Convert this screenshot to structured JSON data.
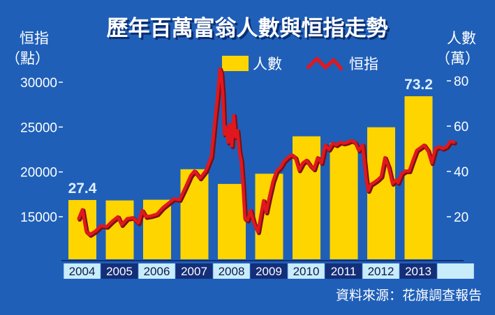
{
  "chart_data": {
    "type": "bar",
    "title": "歷年百萬富翁人數與恒指走勢",
    "left_axis_label": [
      "恒指",
      "（點）"
    ],
    "right_axis_label": [
      "人數",
      "（萬）"
    ],
    "left_ylim": [
      10000,
      35000
    ],
    "left_ticks": [
      "15000",
      "20000",
      "25000",
      "30000"
    ],
    "left_tick_values": [
      15000,
      20000,
      25000,
      30000
    ],
    "right_ylim": [
      0,
      80
    ],
    "right_ticks": [
      "20",
      "40",
      "60",
      "80"
    ],
    "right_tick_values": [
      20,
      40,
      60,
      80
    ],
    "categories": [
      "2004",
      "2005",
      "2006",
      "2007",
      "2008",
      "2009",
      "2010",
      "2011",
      "2012",
      "2013"
    ],
    "series": [
      {
        "name": "人數",
        "color": "#ffd500",
        "axis": "right",
        "values": [
          27.4,
          27.2,
          27.5,
          41,
          34.5,
          39,
          55.5,
          52.5,
          59.5,
          73.2
        ]
      },
      {
        "name": "恒指",
        "color": "#e0181e",
        "axis": "left",
        "x": [
          2003.9,
          2004.0,
          2004.1,
          2004.2,
          2004.35,
          2004.5,
          2004.65,
          2004.8,
          2004.95,
          2005.05,
          2005.2,
          2005.35,
          2005.5,
          2005.6,
          2005.7,
          2005.85,
          2006.0,
          2006.15,
          2006.3,
          2006.45,
          2006.6,
          2006.75,
          2006.9,
          2007.0,
          2007.15,
          2007.3,
          2007.45,
          2007.55,
          2007.62,
          2007.68,
          2007.72,
          2007.76,
          2007.8,
          2007.85,
          2007.9,
          2007.95,
          2008.0,
          2008.05,
          2008.1,
          2008.15,
          2008.2,
          2008.25,
          2008.3,
          2008.35,
          2008.42,
          2008.5,
          2008.6,
          2008.7,
          2008.78,
          2008.85,
          2008.92,
          2009.0,
          2009.1,
          2009.2,
          2009.3,
          2009.4,
          2009.5,
          2009.6,
          2009.7,
          2009.8,
          2009.9,
          2010.0,
          2010.1,
          2010.2,
          2010.3,
          2010.4,
          2010.5,
          2010.6,
          2010.7,
          2010.8,
          2010.9,
          2011.0,
          2011.1,
          2011.2,
          2011.3,
          2011.4,
          2011.5,
          2011.6,
          2011.65,
          2011.72,
          2011.8,
          2011.9,
          2012.0,
          2012.1,
          2012.2,
          2012.3,
          2012.4,
          2012.45,
          2012.55,
          2012.65,
          2012.75,
          2012.85,
          2012.95,
          2013.05,
          2013.15,
          2013.25,
          2013.35,
          2013.45,
          2013.55,
          2013.65,
          2013.75,
          2013.85,
          2013.95
        ],
        "values": [
          14800,
          15800,
          13400,
          13000,
          13400,
          14000,
          13900,
          14500,
          15000,
          14100,
          14800,
          14900,
          14300,
          15700,
          15000,
          15100,
          15300,
          16000,
          16500,
          17000,
          16900,
          18200,
          19600,
          20100,
          19300,
          20100,
          21700,
          25800,
          28600,
          31500,
          30900,
          28500,
          24200,
          25000,
          23300,
          25300,
          22900,
          26300,
          23900,
          24600,
          22300,
          21200,
          18500,
          14800,
          14600,
          15700,
          14200,
          13300,
          15200,
          16800,
          15500,
          17100,
          18900,
          20100,
          20500,
          21200,
          21600,
          21900,
          21600,
          20200,
          21000,
          21300,
          20700,
          20300,
          21600,
          21000,
          23000,
          22500,
          23200,
          23000,
          23300,
          23200,
          23300,
          23500,
          23300,
          22400,
          23000,
          19100,
          17900,
          18600,
          18800,
          19100,
          19500,
          21600,
          20500,
          18700,
          19100,
          18800,
          19800,
          20100,
          20100,
          21300,
          22400,
          22700,
          23000,
          22400,
          21000,
          22600,
          22800,
          22600,
          22800,
          23400,
          23300
        ]
      }
    ],
    "callouts": [
      {
        "category": "2004",
        "text": "27.4"
      },
      {
        "category": "2013",
        "text": "73.2"
      }
    ],
    "legend": {
      "position": "top-center"
    },
    "source": "資料來源：花旗調查報告",
    "grid": false
  },
  "colors": {
    "background": "#1f5fb8",
    "bar": "#ffd500",
    "line": "#e0181e",
    "axis_band_light": "#c9ecfb",
    "axis_band_dark": "#142e78",
    "title_shadow": "#0b2d6e"
  }
}
